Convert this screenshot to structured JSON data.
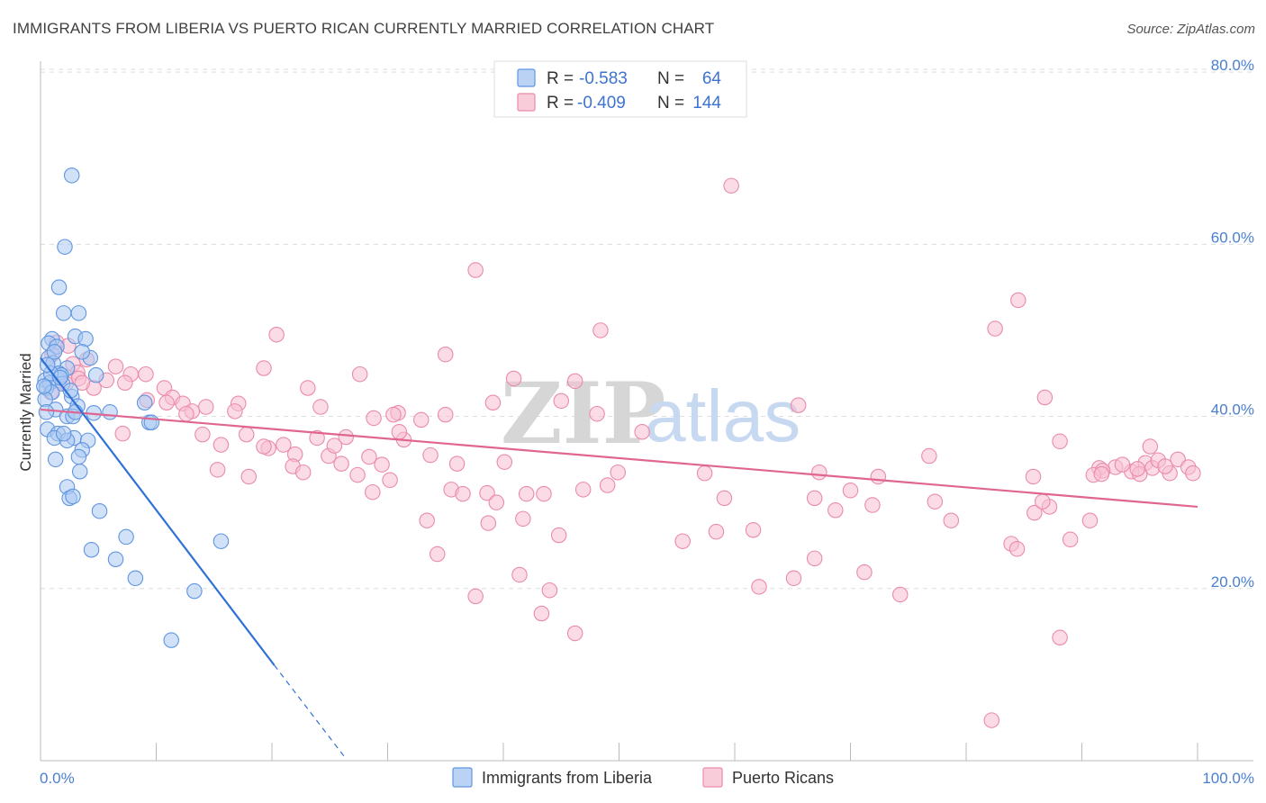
{
  "title": "IMMIGRANTS FROM LIBERIA VS PUERTO RICAN CURRENTLY MARRIED CORRELATION CHART",
  "source": "Source: ZipAtlas.com",
  "colors": {
    "blue_fill": "#a9c8f2",
    "blue_stroke": "#5f95e0",
    "blue_line": "#2f72d6",
    "pink_fill": "#f7bfd1",
    "pink_stroke": "#ea8aaa",
    "pink_line": "#e0668f",
    "tick_text": "#4a7fd0",
    "grid": "#dddddd"
  },
  "legend": {
    "rows": [
      {
        "r_label": "R =",
        "r_value": "-0.583",
        "n_label": "N =",
        "n_value": "64"
      },
      {
        "r_label": "R =",
        "r_value": "-0.409",
        "n_label": "N =",
        "n_value": "144"
      }
    ]
  },
  "watermark": {
    "part1": "ZIP",
    "part2": "atlas"
  },
  "chart_data": {
    "type": "scatter",
    "title": "IMMIGRANTS FROM LIBERIA VS PUERTO RICAN CURRENTLY MARRIED CORRELATION CHART",
    "xlabel": "",
    "ylabel": "Currently Married",
    "xlim": [
      0,
      100
    ],
    "ylim": [
      0,
      82
    ],
    "x_tick_labels": [
      "0.0%",
      "100.0%"
    ],
    "y_ticks": [
      20,
      40,
      60,
      80
    ],
    "y_tick_labels": [
      "20.0%",
      "40.0%",
      "60.0%",
      "80.0%"
    ],
    "grid": true,
    "legend_position": "top-center",
    "series": [
      {
        "name": "Immigrants from Liberia",
        "R": -0.583,
        "N": 64,
        "trend": {
          "x": [
            0,
            20.2
          ],
          "y": [
            46.8,
            11.1
          ],
          "dashed_to": {
            "x": 26.3,
            "y": 0.4
          }
        },
        "points": [
          [
            2.7,
            68.0
          ],
          [
            2.1,
            59.7
          ],
          [
            1.6,
            55.0
          ],
          [
            2.0,
            52.0
          ],
          [
            3.3,
            52.0
          ],
          [
            1.0,
            49.0
          ],
          [
            3.0,
            49.3
          ],
          [
            3.9,
            49.0
          ],
          [
            0.7,
            48.5
          ],
          [
            1.4,
            48.1
          ],
          [
            4.3,
            46.8
          ],
          [
            3.6,
            47.5
          ],
          [
            0.7,
            46.8
          ],
          [
            1.1,
            46.2
          ],
          [
            2.3,
            45.6
          ],
          [
            1.6,
            45.0
          ],
          [
            1.8,
            44.8
          ],
          [
            4.8,
            44.8
          ],
          [
            0.4,
            44.2
          ],
          [
            0.8,
            43.9
          ],
          [
            1.9,
            43.8
          ],
          [
            0.5,
            43.3
          ],
          [
            1.0,
            42.8
          ],
          [
            2.7,
            42.3
          ],
          [
            0.4,
            42.0
          ],
          [
            3.2,
            41.2
          ],
          [
            9.0,
            41.6
          ],
          [
            1.3,
            40.8
          ],
          [
            4.6,
            40.4
          ],
          [
            6.0,
            40.5
          ],
          [
            2.3,
            40.0
          ],
          [
            2.8,
            40.0
          ],
          [
            9.4,
            39.3
          ],
          [
            9.6,
            39.3
          ],
          [
            0.6,
            38.5
          ],
          [
            1.5,
            38.0
          ],
          [
            2.9,
            37.5
          ],
          [
            4.1,
            37.2
          ],
          [
            1.2,
            37.5
          ],
          [
            2.3,
            37.2
          ],
          [
            3.6,
            36.1
          ],
          [
            3.3,
            35.3
          ],
          [
            1.3,
            35.0
          ],
          [
            3.4,
            33.6
          ],
          [
            2.3,
            31.8
          ],
          [
            2.5,
            30.5
          ],
          [
            2.8,
            30.7
          ],
          [
            5.1,
            29.0
          ],
          [
            7.4,
            26.0
          ],
          [
            15.6,
            25.5
          ],
          [
            4.4,
            24.5
          ],
          [
            6.5,
            23.4
          ],
          [
            8.2,
            21.2
          ],
          [
            13.3,
            19.7
          ],
          [
            11.3,
            14.0
          ],
          [
            0.3,
            43.5
          ],
          [
            0.9,
            45.0
          ],
          [
            1.7,
            44.5
          ],
          [
            2.6,
            43.0
          ],
          [
            0.5,
            40.5
          ],
          [
            1.2,
            47.5
          ],
          [
            0.6,
            46.0
          ],
          [
            3.0,
            40.5
          ],
          [
            2.0,
            38.0
          ]
        ]
      },
      {
        "name": "Puerto Ricans",
        "R": -0.409,
        "N": 144,
        "trend": {
          "x": [
            0,
            100
          ],
          "y": [
            40.8,
            29.5
          ]
        },
        "points": [
          [
            59.7,
            66.8
          ],
          [
            37.6,
            57.0
          ],
          [
            84.5,
            53.5
          ],
          [
            48.4,
            50.0
          ],
          [
            82.5,
            50.2
          ],
          [
            20.4,
            49.5
          ],
          [
            35.0,
            47.2
          ],
          [
            1.4,
            48.6
          ],
          [
            2.4,
            48.2
          ],
          [
            1.0,
            47.2
          ],
          [
            4.0,
            46.6
          ],
          [
            2.8,
            46.1
          ],
          [
            6.5,
            45.8
          ],
          [
            19.3,
            45.6
          ],
          [
            3.2,
            45.1
          ],
          [
            7.8,
            44.9
          ],
          [
            9.1,
            44.9
          ],
          [
            27.6,
            44.9
          ],
          [
            40.9,
            44.4
          ],
          [
            46.2,
            44.1
          ],
          [
            5.7,
            44.2
          ],
          [
            7.3,
            43.9
          ],
          [
            10.7,
            43.3
          ],
          [
            3.3,
            44.4
          ],
          [
            23.1,
            43.3
          ],
          [
            4.6,
            43.3
          ],
          [
            2.2,
            43.8
          ],
          [
            0.9,
            42.8
          ],
          [
            11.4,
            42.2
          ],
          [
            12.3,
            41.5
          ],
          [
            17.1,
            41.5
          ],
          [
            39.1,
            41.6
          ],
          [
            10.9,
            41.6
          ],
          [
            14.3,
            41.1
          ],
          [
            24.2,
            41.1
          ],
          [
            45.0,
            41.8
          ],
          [
            65.5,
            41.3
          ],
          [
            13.1,
            40.6
          ],
          [
            16.8,
            40.6
          ],
          [
            30.9,
            40.4
          ],
          [
            12.6,
            40.3
          ],
          [
            48.1,
            40.3
          ],
          [
            35.0,
            40.2
          ],
          [
            28.8,
            39.8
          ],
          [
            32.9,
            39.6
          ],
          [
            26.4,
            37.6
          ],
          [
            23.9,
            37.5
          ],
          [
            7.1,
            38.0
          ],
          [
            52.0,
            38.2
          ],
          [
            14.0,
            37.9
          ],
          [
            15.6,
            36.7
          ],
          [
            19.7,
            36.3
          ],
          [
            17.8,
            37.9
          ],
          [
            19.3,
            36.5
          ],
          [
            21.0,
            36.7
          ],
          [
            31.4,
            37.3
          ],
          [
            22.0,
            35.6
          ],
          [
            24.9,
            35.4
          ],
          [
            28.4,
            35.3
          ],
          [
            33.7,
            35.5
          ],
          [
            40.1,
            34.7
          ],
          [
            29.5,
            34.4
          ],
          [
            36.0,
            34.5
          ],
          [
            21.8,
            34.2
          ],
          [
            15.3,
            33.8
          ],
          [
            18.0,
            33.0
          ],
          [
            22.7,
            33.5
          ],
          [
            27.4,
            33.2
          ],
          [
            28.7,
            31.2
          ],
          [
            30.2,
            32.6
          ],
          [
            35.5,
            31.5
          ],
          [
            36.5,
            31.0
          ],
          [
            38.6,
            31.1
          ],
          [
            42.0,
            31.0
          ],
          [
            43.5,
            31.0
          ],
          [
            46.9,
            31.5
          ],
          [
            49.0,
            32.0
          ],
          [
            57.4,
            33.4
          ],
          [
            72.4,
            33.0
          ],
          [
            85.8,
            33.0
          ],
          [
            91.5,
            34.0
          ],
          [
            92.9,
            34.1
          ],
          [
            91.8,
            33.7
          ],
          [
            94.3,
            33.6
          ],
          [
            95.5,
            34.6
          ],
          [
            96.1,
            34.0
          ],
          [
            96.6,
            34.9
          ],
          [
            98.3,
            35.0
          ],
          [
            97.6,
            33.4
          ],
          [
            99.2,
            34.1
          ],
          [
            99.6,
            33.4
          ],
          [
            93.5,
            34.4
          ],
          [
            88.1,
            37.1
          ],
          [
            91.0,
            33.2
          ],
          [
            95.0,
            33.3
          ],
          [
            95.9,
            36.5
          ],
          [
            67.3,
            33.5
          ],
          [
            49.9,
            33.5
          ],
          [
            76.8,
            35.4
          ],
          [
            91.7,
            33.3
          ],
          [
            66.9,
            30.5
          ],
          [
            77.3,
            30.1
          ],
          [
            70.0,
            31.4
          ],
          [
            71.9,
            29.7
          ],
          [
            68.7,
            29.1
          ],
          [
            39.4,
            30.0
          ],
          [
            38.7,
            27.6
          ],
          [
            33.4,
            27.9
          ],
          [
            41.7,
            28.1
          ],
          [
            59.1,
            30.5
          ],
          [
            78.7,
            27.9
          ],
          [
            85.9,
            28.8
          ],
          [
            87.2,
            29.5
          ],
          [
            86.6,
            30.1
          ],
          [
            90.7,
            27.9
          ],
          [
            44.8,
            26.2
          ],
          [
            58.4,
            26.6
          ],
          [
            55.5,
            25.5
          ],
          [
            61.6,
            26.8
          ],
          [
            83.9,
            25.2
          ],
          [
            84.4,
            24.6
          ],
          [
            89.0,
            25.7
          ],
          [
            34.3,
            24.0
          ],
          [
            66.9,
            23.5
          ],
          [
            41.4,
            21.6
          ],
          [
            71.2,
            21.9
          ],
          [
            65.1,
            21.2
          ],
          [
            44.0,
            19.8
          ],
          [
            62.1,
            20.2
          ],
          [
            74.3,
            19.3
          ],
          [
            37.6,
            19.1
          ],
          [
            43.3,
            17.1
          ],
          [
            46.2,
            14.8
          ],
          [
            88.1,
            14.3
          ],
          [
            82.2,
            4.7
          ],
          [
            94.8,
            33.9
          ],
          [
            97.2,
            34.2
          ],
          [
            86.8,
            42.2
          ],
          [
            30.5,
            40.2
          ],
          [
            3.6,
            43.9
          ],
          [
            25.4,
            36.6
          ],
          [
            9.2,
            41.9
          ],
          [
            31.0,
            38.2
          ],
          [
            26.0,
            34.5
          ]
        ]
      }
    ]
  }
}
